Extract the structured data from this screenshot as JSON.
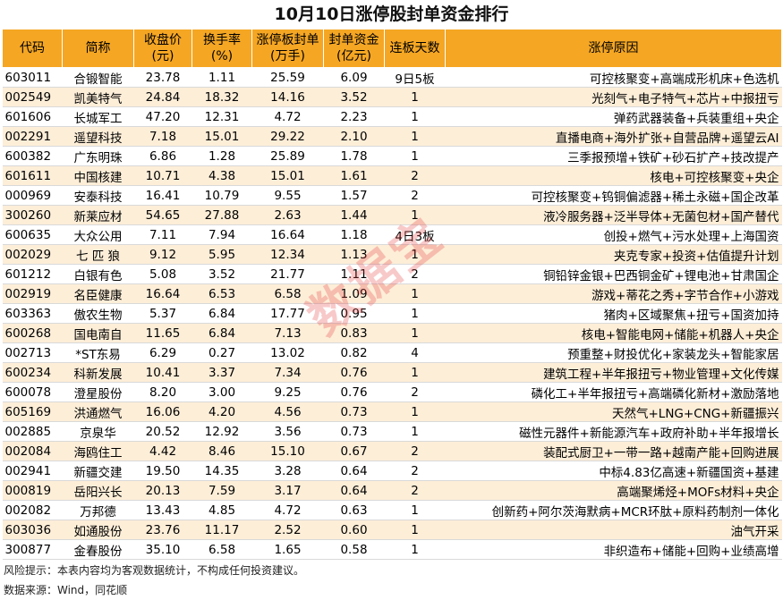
{
  "title": "10月10日涨停股封单资金排行",
  "headers": {
    "code": "代码",
    "name": "简称",
    "close": [
      "收盘价",
      "(元)"
    ],
    "turnover": [
      "换手率",
      "(%)"
    ],
    "seal_vol": [
      "涨停板封单",
      "(万手)"
    ],
    "seal_amt": [
      "封单资金",
      "(亿元)"
    ],
    "days": "连板天数",
    "reason": "涨停原因"
  },
  "rows": [
    {
      "code": "603011",
      "name": "合锻智能",
      "close": "23.78",
      "turnover": "1.11",
      "seal_vol": "25.59",
      "seal_amt": "6.09",
      "days": "9日5板",
      "reason": "可控核聚变+高端成形机床+色选机"
    },
    {
      "code": "002549",
      "name": "凯美特气",
      "close": "24.84",
      "turnover": "18.32",
      "seal_vol": "14.16",
      "seal_amt": "3.52",
      "days": "1",
      "reason": "光刻气+电子特气+芯片+中报扭亏"
    },
    {
      "code": "601606",
      "name": "长城军工",
      "close": "47.20",
      "turnover": "12.31",
      "seal_vol": "4.72",
      "seal_amt": "2.23",
      "days": "1",
      "reason": "弹药武器装备+兵装重组+央企"
    },
    {
      "code": "002291",
      "name": "遥望科技",
      "close": "7.18",
      "turnover": "15.01",
      "seal_vol": "29.22",
      "seal_amt": "2.10",
      "days": "1",
      "reason": "直播电商+海外扩张+自营品牌+遥望云AI"
    },
    {
      "code": "600382",
      "name": "广东明珠",
      "close": "6.86",
      "turnover": "1.28",
      "seal_vol": "25.89",
      "seal_amt": "1.78",
      "days": "1",
      "reason": "三季报预增+铁矿+砂石扩产+技改提产"
    },
    {
      "code": "601611",
      "name": "中国核建",
      "close": "10.71",
      "turnover": "4.38",
      "seal_vol": "15.01",
      "seal_amt": "1.61",
      "days": "2",
      "reason": "核电+可控核聚变+央企"
    },
    {
      "code": "000969",
      "name": "安泰科技",
      "close": "16.41",
      "turnover": "10.79",
      "seal_vol": "9.55",
      "seal_amt": "1.57",
      "days": "2",
      "reason": "可控核聚变+钨铜偏滤器+稀土永磁+国企改革"
    },
    {
      "code": "300260",
      "name": "新莱应材",
      "close": "54.65",
      "turnover": "27.88",
      "seal_vol": "2.63",
      "seal_amt": "1.44",
      "days": "1",
      "reason": "液冷服务器+泛半导体+无菌包材+国产替代"
    },
    {
      "code": "600635",
      "name": "大众公用",
      "close": "7.11",
      "turnover": "7.94",
      "seal_vol": "16.64",
      "seal_amt": "1.18",
      "days": "4日3板",
      "reason": "创投+燃气+污水处理+上海国资"
    },
    {
      "code": "002029",
      "name": "七 匹 狼",
      "close": "9.12",
      "turnover": "5.95",
      "seal_vol": "12.34",
      "seal_amt": "1.13",
      "days": "1",
      "reason": "夹克专家+投资+估值提升计划"
    },
    {
      "code": "601212",
      "name": "白银有色",
      "close": "5.08",
      "turnover": "3.52",
      "seal_vol": "21.77",
      "seal_amt": "1.11",
      "days": "2",
      "reason": "铜铅锌金银+巴西铜金矿+锂电池+甘肃国企"
    },
    {
      "code": "002919",
      "name": "名臣健康",
      "close": "16.64",
      "turnover": "6.53",
      "seal_vol": "6.58",
      "seal_amt": "1.09",
      "days": "1",
      "reason": "游戏+蒂花之秀+字节合作+小游戏"
    },
    {
      "code": "603363",
      "name": "傲农生物",
      "close": "5.37",
      "turnover": "6.84",
      "seal_vol": "17.77",
      "seal_amt": "0.95",
      "days": "1",
      "reason": "猪肉+区域聚焦+扭亏+国资加持"
    },
    {
      "code": "600268",
      "name": "国电南自",
      "close": "11.65",
      "turnover": "6.84",
      "seal_vol": "7.13",
      "seal_amt": "0.83",
      "days": "1",
      "reason": "核电+智能电网+储能+机器人+央企"
    },
    {
      "code": "002713",
      "name": "*ST东易",
      "close": "6.29",
      "turnover": "0.27",
      "seal_vol": "13.02",
      "seal_amt": "0.82",
      "days": "4",
      "reason": "预重整+财投优化+家装龙头+智能家居"
    },
    {
      "code": "600234",
      "name": "科新发展",
      "close": "10.41",
      "turnover": "3.37",
      "seal_vol": "7.34",
      "seal_amt": "0.76",
      "days": "1",
      "reason": "建筑工程+半年报扭亏+物业管理+文化传媒"
    },
    {
      "code": "600078",
      "name": "澄星股份",
      "close": "8.20",
      "turnover": "3.00",
      "seal_vol": "9.25",
      "seal_amt": "0.76",
      "days": "2",
      "reason": "磷化工+半年报扭亏+高端磷化新材+激励落地"
    },
    {
      "code": "605169",
      "name": "洪通燃气",
      "close": "16.06",
      "turnover": "4.20",
      "seal_vol": "4.56",
      "seal_amt": "0.73",
      "days": "1",
      "reason": "天然气+LNG+CNG+新疆振兴"
    },
    {
      "code": "002885",
      "name": "京泉华",
      "close": "20.52",
      "turnover": "12.92",
      "seal_vol": "3.56",
      "seal_amt": "0.73",
      "days": "1",
      "reason": "磁性元器件+新能源汽车+政府补助+半年报增长"
    },
    {
      "code": "002084",
      "name": "海鸥住工",
      "close": "4.42",
      "turnover": "8.46",
      "seal_vol": "15.10",
      "seal_amt": "0.67",
      "days": "2",
      "reason": "装配式厨卫+一带一路+越南产能+回购进展"
    },
    {
      "code": "002941",
      "name": "新疆交建",
      "close": "19.50",
      "turnover": "14.35",
      "seal_vol": "3.28",
      "seal_amt": "0.64",
      "days": "2",
      "reason": "中标4.83亿高速+新疆国资+基建"
    },
    {
      "code": "000819",
      "name": "岳阳兴长",
      "close": "20.13",
      "turnover": "7.59",
      "seal_vol": "3.17",
      "seal_amt": "0.64",
      "days": "2",
      "reason": "高端聚烯烃+MOFs材料+央企"
    },
    {
      "code": "002082",
      "name": "万邦德",
      "close": "13.43",
      "turnover": "4.85",
      "seal_vol": "4.72",
      "seal_amt": "0.63",
      "days": "1",
      "reason": "创新药+阿尔茨海默病+MCR环肽+原料药制剂一体化"
    },
    {
      "code": "603036",
      "name": "如通股份",
      "close": "23.76",
      "turnover": "11.17",
      "seal_vol": "2.52",
      "seal_amt": "0.60",
      "days": "1",
      "reason": "油气开采"
    },
    {
      "code": "300877",
      "name": "金春股份",
      "close": "35.10",
      "turnover": "6.58",
      "seal_vol": "1.65",
      "seal_amt": "0.58",
      "days": "1",
      "reason": "非织造布+储能+回购+业绩高增"
    }
  ],
  "footer": {
    "risk": "风险提示：本表内容均为客观数据统计，不构成任何投资建议。",
    "source": "数据来源：Wind，同花顺"
  },
  "watermark": "数据宝"
}
